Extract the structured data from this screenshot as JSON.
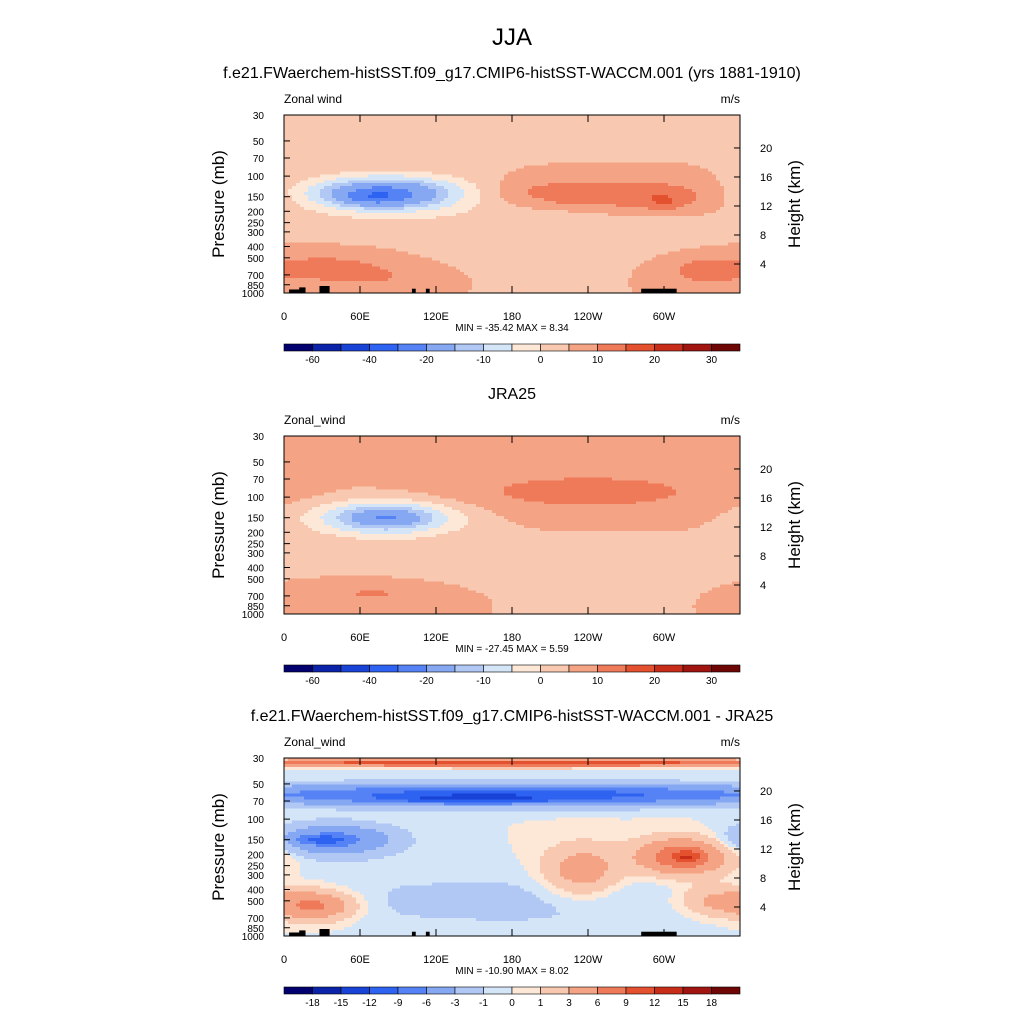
{
  "main_title": "JJA",
  "colors": {
    "frame": "#000000",
    "land": "#000000"
  },
  "palette": [
    "#02006e",
    "#0b23a8",
    "#1843d6",
    "#2e62f0",
    "#5583f5",
    "#86a7f2",
    "#b1c8f5",
    "#d3e5f7",
    "#fde8d8",
    "#f8c8b0",
    "#f4a384",
    "#ef7a5a",
    "#e4512f",
    "#c82d1a",
    "#a11510",
    "#6e0606"
  ],
  "chart_data": [
    {
      "type": "heatmap",
      "title": "f.e21.FWaerchem-histSST.f09_g17.CMIP6-histSST-WACCM.001 (yrs 1881-1910)",
      "left_string": "Zonal wind",
      "right_string": "m/s",
      "ylabel": "Pressure (mb)",
      "ylabel_right": "Height (km)",
      "x_ticks": [
        "0",
        "60E",
        "120E",
        "180",
        "120W",
        "60W"
      ],
      "y_ticks": [
        "30",
        "50",
        "70",
        "100",
        "150",
        "200",
        "250",
        "300",
        "400",
        "500",
        "700",
        "850",
        "1000"
      ],
      "y_ticks_right": [
        "20",
        "16",
        "12",
        "8",
        "4"
      ],
      "stats": "MIN = -35.42  MAX =   8.34",
      "colorbar_labels": [
        "-60",
        "-40",
        "-20",
        "-10",
        "0",
        "10",
        "20",
        "30"
      ],
      "xlim": [
        0,
        360
      ],
      "ylim": [
        1000,
        30
      ],
      "show_land": true,
      "features": [
        {
          "lon": 180,
          "p": 250,
          "rx": 190,
          "rp": 0.7,
          "v": -3
        },
        {
          "lon": 80,
          "p": 140,
          "rx": 60,
          "rp": 0.33,
          "v": -30
        },
        {
          "lon": 72,
          "p": 150,
          "rx": 26,
          "rp": 0.15,
          "v": -12
        },
        {
          "lon": 35,
          "p": 600,
          "rx": 60,
          "rp": 0.35,
          "v": 7
        },
        {
          "lon": 75,
          "p": 750,
          "rx": 40,
          "rp": 0.2,
          "v": 3
        },
        {
          "lon": 215,
          "p": 140,
          "rx": 60,
          "rp": 0.3,
          "v": 8
        },
        {
          "lon": 295,
          "p": 150,
          "rx": 55,
          "rp": 0.32,
          "v": 9
        },
        {
          "lon": 300,
          "p": 170,
          "rx": 12,
          "rp": 0.14,
          "v": 4
        },
        {
          "lon": 225,
          "p": 160,
          "rx": 10,
          "rp": 0.08,
          "v": 3
        },
        {
          "lon": 330,
          "p": 650,
          "rx": 30,
          "rp": 0.3,
          "v": 6
        }
      ]
    },
    {
      "type": "heatmap",
      "title": "JRA25",
      "left_string": "Zonal_wind",
      "right_string": "m/s",
      "ylabel": "Pressure (mb)",
      "ylabel_right": "Height (km)",
      "x_ticks": [
        "0",
        "60E",
        "120E",
        "180",
        "120W",
        "60W"
      ],
      "y_ticks": [
        "30",
        "50",
        "70",
        "100",
        "150",
        "200",
        "250",
        "300",
        "400",
        "500",
        "700",
        "850",
        "1000"
      ],
      "y_ticks_right": [
        "20",
        "16",
        "12",
        "8",
        "4"
      ],
      "stats": "MIN = -27.45  MAX =   5.59",
      "colorbar_labels": [
        "-60",
        "-40",
        "-20",
        "-10",
        "0",
        "10",
        "20",
        "30"
      ],
      "xlim": [
        0,
        360
      ],
      "ylim": [
        1000,
        30
      ],
      "show_land": false,
      "features": [
        {
          "lon": 180,
          "p": 400,
          "rx": 200,
          "rp": 0.5,
          "v": -3
        },
        {
          "lon": 80,
          "p": 150,
          "rx": 55,
          "rp": 0.33,
          "v": -24
        },
        {
          "lon": 80,
          "p": 150,
          "rx": 22,
          "rp": 0.12,
          "v": -8
        },
        {
          "lon": 240,
          "p": 90,
          "rx": 120,
          "rp": 0.45,
          "v": 7
        },
        {
          "lon": 300,
          "p": 150,
          "rx": 12,
          "rp": 0.08,
          "v": 3
        },
        {
          "lon": 70,
          "p": 650,
          "rx": 65,
          "rp": 0.3,
          "v": 6
        },
        {
          "lon": 80,
          "p": 850,
          "rx": 20,
          "rp": 0.12,
          "v": 2
        }
      ]
    },
    {
      "type": "heatmap",
      "title": "f.e21.FWaerchem-histSST.f09_g17.CMIP6-histSST-WACCM.001 - JRA25",
      "left_string": "Zonal_wind",
      "right_string": "m/s",
      "ylabel": "Pressure (mb)",
      "ylabel_right": "Height (km)",
      "x_ticks": [
        "0",
        "60E",
        "120E",
        "180",
        "120W",
        "60W"
      ],
      "y_ticks": [
        "30",
        "50",
        "70",
        "100",
        "150",
        "200",
        "250",
        "300",
        "400",
        "500",
        "700",
        "850",
        "1000"
      ],
      "y_ticks_right": [
        "20",
        "16",
        "12",
        "8",
        "4"
      ],
      "stats": "MIN = -10.90  MAX =   8.02",
      "colorbar_labels": [
        "-18",
        "-15",
        "-12",
        "-9",
        "-6",
        "-3",
        "-1",
        "0",
        "1",
        "3",
        "6",
        "9",
        "12",
        "15",
        "18"
      ],
      "xlim": [
        0,
        360
      ],
      "ylim": [
        1000,
        30
      ],
      "show_land": true,
      "features": [
        {
          "lon": 180,
          "p": 500,
          "rx": 200,
          "rp": 0.6,
          "v": -1.5
        },
        {
          "lon": 180,
          "p": 62,
          "rx": 230,
          "rp": 0.2,
          "v": -11
        },
        {
          "lon": 145,
          "p": 68,
          "rx": 60,
          "rp": 0.08,
          "v": -5
        },
        {
          "lon": 180,
          "p": 33,
          "rx": 250,
          "rp": 0.07,
          "v": 12
        },
        {
          "lon": 40,
          "p": 150,
          "rx": 45,
          "rp": 0.3,
          "v": -7
        },
        {
          "lon": 30,
          "p": 150,
          "rx": 18,
          "rp": 0.08,
          "v": -5
        },
        {
          "lon": 25,
          "p": 550,
          "rx": 30,
          "rp": 0.3,
          "v": 7
        },
        {
          "lon": 235,
          "p": 280,
          "rx": 30,
          "rp": 0.5,
          "v": 5
        },
        {
          "lon": 315,
          "p": 210,
          "rx": 35,
          "rp": 0.35,
          "v": 9
        },
        {
          "lon": 318,
          "p": 210,
          "rx": 10,
          "rp": 0.1,
          "v": 4
        },
        {
          "lon": 340,
          "p": 500,
          "rx": 30,
          "rp": 0.3,
          "v": 4
        }
      ]
    }
  ]
}
